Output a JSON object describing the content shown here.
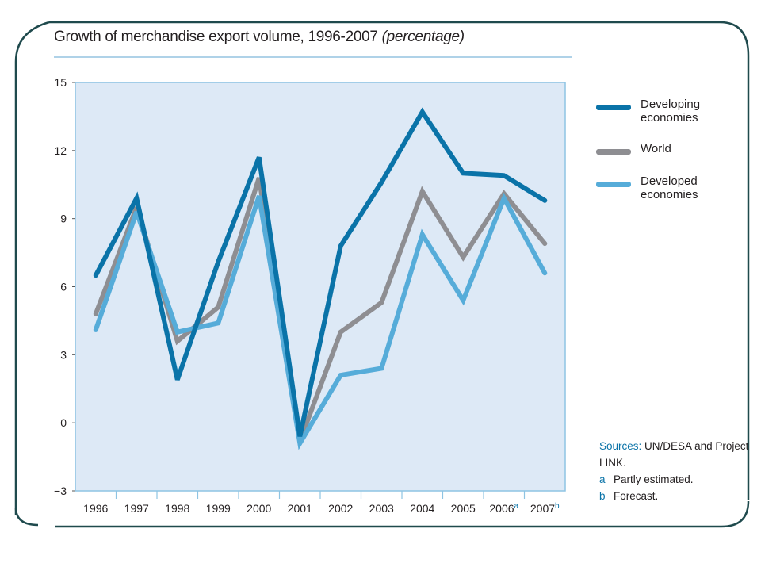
{
  "title": {
    "main": "Growth of merchandise export volume, 1996-2007",
    "unit": "(percentage)"
  },
  "legend": [
    {
      "label": "Developing economies",
      "color": "#0a73a8"
    },
    {
      "label": "World",
      "color": "#8e8e92"
    },
    {
      "label": "Developed economies",
      "color": "#56acd9"
    }
  ],
  "notes": {
    "sources_label": "Sources:",
    "sources_text": "UN/DESA and Project LINK.",
    "footnotes": [
      {
        "mark": "a",
        "text": "Partly estimated."
      },
      {
        "mark": "b",
        "text": "Forecast."
      }
    ]
  },
  "chart_data": {
    "type": "line",
    "title": "Growth of merchandise export volume, 1996-2007 (percentage)",
    "categories": [
      "1996",
      "1997",
      "1998",
      "1999",
      "2000",
      "2001",
      "2002",
      "2003",
      "2004",
      "2005",
      "2006",
      "2007"
    ],
    "category_superscripts": [
      "",
      "",
      "",
      "",
      "",
      "",
      "",
      "",
      "",
      "",
      "a",
      "b"
    ],
    "ylim": [
      -3,
      15
    ],
    "yticks": [
      -3,
      0,
      3,
      6,
      9,
      12,
      15
    ],
    "grid": false,
    "legend_position": "right",
    "series": [
      {
        "name": "World",
        "color": "#8e8e92",
        "values": [
          4.8,
          9.5,
          3.6,
          5.1,
          10.8,
          -0.8,
          4.0,
          5.3,
          10.2,
          7.3,
          10.1,
          7.9
        ]
      },
      {
        "name": "Developed economies",
        "color": "#56acd9",
        "values": [
          4.1,
          9.3,
          4.0,
          4.4,
          10.0,
          -0.9,
          2.1,
          2.4,
          8.3,
          5.4,
          9.9,
          6.6
        ]
      },
      {
        "name": "Developing economies",
        "color": "#0a73a8",
        "values": [
          6.5,
          9.9,
          1.9,
          7.1,
          11.7,
          -0.6,
          7.8,
          10.6,
          13.7,
          11.0,
          10.9,
          9.8
        ]
      }
    ]
  }
}
